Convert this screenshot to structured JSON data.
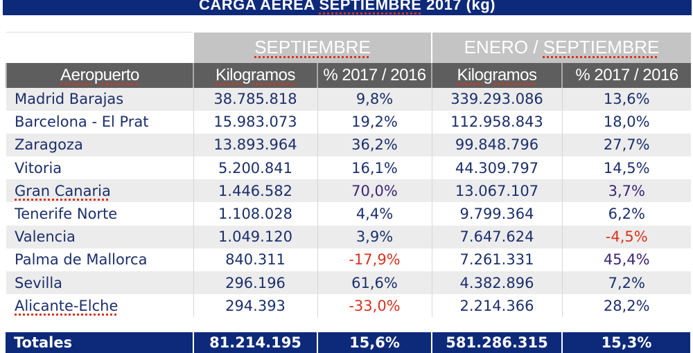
{
  "title_prefix": "CARGA AÉREA ",
  "title_month": "SEPTIEMBRE",
  "title_suffix": " 2017 (kg)",
  "groups": {
    "sep": "SEPTIEMBRE",
    "ene": "ENERO / ",
    "ene2": "SEPTIEMBRE"
  },
  "columns": [
    "Aeropuerto",
    "Kilogramos",
    "% 2017 / 2016",
    "Kilogramos",
    "% 2017 / 2016"
  ],
  "rows": [
    [
      "Madrid Barajas",
      "38.785.818",
      "9,8%",
      "339.293.086",
      "13,6%"
    ],
    [
      "Barcelona - El Prat",
      "15.983.073",
      "19,2%",
      "112.958.843",
      "18,0%"
    ],
    [
      "Zaragoza",
      "13.893.964",
      "36,2%",
      "99.848.796",
      "27,7%"
    ],
    [
      "Vitoria",
      "5.200.841",
      "16,1%",
      "44.309.797",
      "14,5%"
    ],
    [
      "Gran Canaria",
      "1.446.582",
      "70,0%",
      "13.067.107",
      "3,7%"
    ],
    [
      "Tenerife Norte",
      "1.108.028",
      "4,4%",
      "9.799.364",
      "6,2%"
    ],
    [
      "Valencia",
      "1.049.120",
      "3,9%",
      "7.647.624",
      "-4,5%"
    ],
    [
      "Palma de Mallorca",
      "840.311",
      "-17,9%",
      "7.261.331",
      "45,4%"
    ],
    [
      "Sevilla",
      "296.196",
      "61,6%",
      "4.382.896",
      "7,2%"
    ],
    [
      "Alicante-Elche",
      "294.393",
      "-33,0%",
      "2.214.366",
      "28,2%"
    ]
  ],
  "totals": [
    "Totales",
    "81.214.195",
    "15,6%",
    "581.286.315",
    "15,3%"
  ],
  "colors": {
    "navy": "#0d2a7a",
    "text": "#1b2f6b",
    "negative": "#d8331e",
    "highlight": "#3c2577"
  }
}
